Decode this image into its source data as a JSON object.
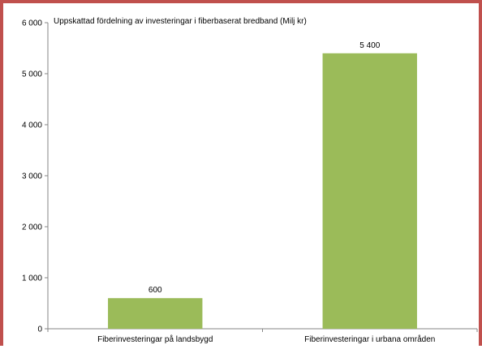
{
  "chart_data": {
    "type": "bar",
    "title": "Uppskattad fördelning av investeringar i fiberbaserat bredband (Milj kr)",
    "categories": [
      "Fiberinvesteringar på landsbygd",
      "Fiberinvesteringar i urbana områden"
    ],
    "values": [
      600,
      5400
    ],
    "data_labels": [
      "600",
      "5 400"
    ],
    "ylim": [
      0,
      6000
    ],
    "yticks": [
      0,
      1000,
      2000,
      3000,
      4000,
      5000,
      6000
    ],
    "ytick_labels": [
      "0",
      "1 000",
      "2 000",
      "3 000",
      "4 000",
      "5 000",
      "6 000"
    ],
    "xlabel": "",
    "ylabel": "",
    "grid": false,
    "bar_color": "#9bbb59",
    "frame_color": "#c0504d"
  }
}
